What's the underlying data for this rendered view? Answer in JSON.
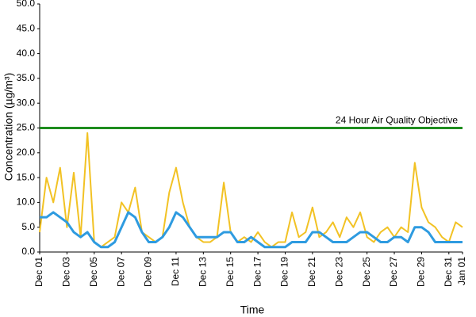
{
  "chart_data": {
    "type": "line",
    "xlabel": "Time",
    "ylabel": "Concentration (µg/m³)",
    "x": [
      0,
      0.5,
      1,
      1.5,
      2,
      2.5,
      3,
      3.5,
      4,
      4.5,
      5,
      5.5,
      6,
      6.5,
      7,
      7.5,
      8,
      8.5,
      9,
      9.5,
      10,
      10.5,
      11,
      11.5,
      12,
      12.5,
      13,
      13.5,
      14,
      14.5,
      15,
      15.5,
      16,
      16.5,
      17,
      17.5,
      18,
      18.5,
      19,
      19.5,
      20,
      20.5,
      21,
      21.5,
      22,
      22.5,
      23,
      23.5,
      24,
      24.5,
      25,
      25.5,
      26,
      26.5,
      27,
      27.5,
      28,
      28.5,
      29,
      29.5,
      30,
      30.5,
      31
    ],
    "series": [
      {
        "color": "#f2c224",
        "values": [
          4,
          15,
          10,
          17,
          5,
          16,
          3,
          24,
          2,
          1,
          2,
          3,
          10,
          8,
          13,
          4,
          3,
          2,
          3,
          12,
          17,
          10,
          5,
          3,
          2,
          2,
          3,
          14,
          4,
          2,
          3,
          2,
          4,
          2,
          1,
          2,
          2,
          8,
          3,
          4,
          9,
          3,
          4,
          6,
          3,
          7,
          5,
          8,
          3,
          2,
          4,
          5,
          3,
          5,
          4,
          18,
          9,
          6,
          5,
          3,
          2,
          6,
          5
        ]
      },
      {
        "color": "#2e9be0",
        "values": [
          7,
          7,
          8,
          7,
          6,
          4,
          3,
          4,
          2,
          1,
          1,
          2,
          5,
          8,
          7,
          4,
          2,
          2,
          3,
          5,
          8,
          7,
          5,
          3,
          3,
          3,
          3,
          4,
          4,
          2,
          2,
          3,
          2,
          1,
          1,
          1,
          1,
          2,
          2,
          2,
          4,
          4,
          3,
          2,
          2,
          2,
          3,
          4,
          4,
          3,
          2,
          2,
          3,
          3,
          2,
          5,
          5,
          4,
          2,
          2,
          2,
          2,
          2
        ]
      }
    ],
    "reference_line": {
      "value": 25,
      "label": "24 Hour Air Quality Objective",
      "color": "#1e8c1e"
    },
    "xlim": [
      0,
      31
    ],
    "xticks": [
      {
        "value": 0,
        "label": "Dec 01"
      },
      {
        "value": 2,
        "label": "Dec 03"
      },
      {
        "value": 4,
        "label": "Dec 05"
      },
      {
        "value": 6,
        "label": "Dec 07"
      },
      {
        "value": 8,
        "label": "Dec 09"
      },
      {
        "value": 10,
        "label": "Dec 11"
      },
      {
        "value": 12,
        "label": "Dec 13"
      },
      {
        "value": 14,
        "label": "Dec 15"
      },
      {
        "value": 16,
        "label": "Dec 17"
      },
      {
        "value": 18,
        "label": "Dec 19"
      },
      {
        "value": 20,
        "label": "Dec 21"
      },
      {
        "value": 22,
        "label": "Dec 23"
      },
      {
        "value": 24,
        "label": "Dec 25"
      },
      {
        "value": 26,
        "label": "Dec 27"
      },
      {
        "value": 28,
        "label": "Dec 29"
      },
      {
        "value": 30,
        "label": "Dec 31"
      },
      {
        "value": 31,
        "label": "Jan 01"
      }
    ],
    "ylim": [
      0,
      50
    ],
    "yticks": [
      {
        "value": 0,
        "label": "0.0"
      },
      {
        "value": 5,
        "label": "5.0"
      },
      {
        "value": 10,
        "label": "10.0"
      },
      {
        "value": 15,
        "label": "15.0"
      },
      {
        "value": 20,
        "label": "20.0"
      },
      {
        "value": 25,
        "label": "25.0"
      },
      {
        "value": 30,
        "label": "30.0"
      },
      {
        "value": 35,
        "label": "35.0"
      },
      {
        "value": 40,
        "label": "40.0"
      },
      {
        "value": 45,
        "label": "45.0"
      },
      {
        "value": 50,
        "label": "50.0"
      }
    ],
    "grid": false
  }
}
